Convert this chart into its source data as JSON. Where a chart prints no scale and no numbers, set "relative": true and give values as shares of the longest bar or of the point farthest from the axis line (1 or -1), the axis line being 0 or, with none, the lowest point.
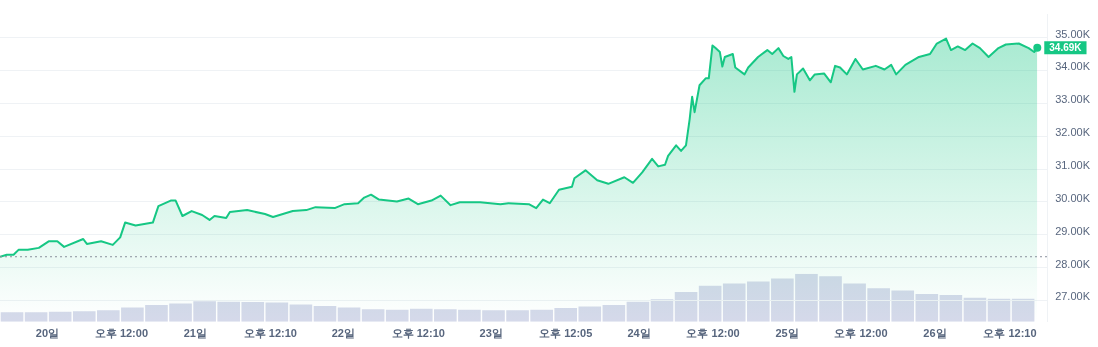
{
  "chart_data": [
    {
      "type": "area",
      "xlim": [
        "--10-19T16:18",
        "--10-26T18:12"
      ],
      "xticks": [
        {
          "value": "--10-20",
          "label": "20일"
        },
        {
          "value": "--10-20T12:00",
          "label": "오후 12:00"
        },
        {
          "value": "--10-21",
          "label": "21일"
        },
        {
          "value": "--10-21T12:10",
          "label": "오후 12:10"
        },
        {
          "value": "--10-22",
          "label": "22일"
        },
        {
          "value": "--10-22T12:10",
          "label": "오후 12:10"
        },
        {
          "value": "--10-23",
          "label": "23일"
        },
        {
          "value": "--10-23T12:05",
          "label": "오후 12:05"
        },
        {
          "value": "--10-24",
          "label": "24일"
        },
        {
          "value": "--10-24T12:00",
          "label": "오후 12:00"
        },
        {
          "value": "--10-25",
          "label": "25일"
        },
        {
          "value": "--10-25T12:00",
          "label": "오후 12:00"
        },
        {
          "value": "--10-26",
          "label": "26일"
        },
        {
          "value": "--10-26T12:10",
          "label": "오후 12:10"
        }
      ],
      "ylim": [
        26.35,
        35.7
      ],
      "yticks": [
        {
          "value": 27,
          "label": "27.00K"
        },
        {
          "value": 28,
          "label": "28.00K"
        },
        {
          "value": 29,
          "label": "29.00K"
        },
        {
          "value": 30,
          "label": "30.00K"
        },
        {
          "value": 31,
          "label": "31.00K"
        },
        {
          "value": 32,
          "label": "32.00K"
        },
        {
          "value": 33,
          "label": "33.00K"
        },
        {
          "value": 34,
          "label": "34.00K"
        },
        {
          "value": 35,
          "label": "35.00K"
        }
      ],
      "grid": "y",
      "series": [
        {
          "color": "#16c784",
          "x": [
            "--10-19T16:18",
            "--10-19T17:24",
            "--10-19T18:30",
            "--10-19T19:18",
            "--10-19T20:48",
            "--10-19T22:36",
            "--10-20T00:12",
            "--10-20T01:36",
            "--10-20T02:42",
            "--10-20T05:48",
            "--10-20T06:24",
            "--10-20T08:42",
            "--10-20T10:36",
            "--10-20T11:48",
            "--10-20T12:36",
            "--10-20T14:18",
            "--10-20T17:06",
            "--10-20T18:00",
            "--10-20T20:00",
            "--10-20T20:48",
            "--10-20T21:54",
            "--10-20T23:24",
            "--10-21T01:06",
            "--10-21T02:18",
            "--10-21T03:06",
            "--10-21T05:00",
            "--10-21T05:36",
            "--10-21T08:24",
            "--10-21T11:18",
            "--10-21T12:36",
            "--10-21T15:48",
            "--10-21T18:00",
            "--10-21T19:30",
            "--10-21T22:36",
            "--10-22T00:12",
            "--10-22T02:24",
            "--10-22T03:24",
            "--10-22T04:30",
            "--10-22T05:48",
            "--10-22T08:42",
            "--10-22T10:36",
            "--10-22T12:06",
            "--10-22T14:18",
            "--10-22T15:48",
            "--10-22T17:24",
            "--10-22T18:54",
            "--10-22T22:12",
            "--10-23T01:30",
            "--10-23T02:48",
            "--10-23T06:06",
            "--10-23T07:18",
            "--10-23T08:24",
            "--10-23T09:30",
            "--10-23T11:00",
            "--10-23T13:06",
            "--10-23T13:30",
            "--10-23T15:18",
            "--10-23T17:12",
            "--10-23T19:00",
            "--10-23T21:36",
            "--10-23T23:00",
            "--10-24T00:30",
            "--10-24T02:06",
            "--10-24T03:06",
            "--10-24T04:12",
            "--10-24T04:42",
            "--10-24T06:00",
            "--10-24T06:48",
            "--10-24T07:36",
            "--10-24T08:12",
            "--10-24T08:36",
            "--10-24T09:00",
            "--10-24T09:48",
            "--10-24T10:48",
            "--10-24T11:18",
            "--10-24T11:54",
            "--10-24T12:24",
            "--10-24T13:06",
            "--10-24T13:30",
            "--10-24T13:54",
            "--10-24T15:12",
            "--10-24T15:36",
            "--10-24T17:06",
            "--10-24T17:42",
            "--10-24T19:18",
            "--10-24T20:48",
            "--10-24T21:36",
            "--10-24T22:36",
            "--10-24T23:24",
            "--10-25T00:12",
            "--10-25T00:42",
            "--10-25T01:12",
            "--10-25T01:36",
            "--10-25T02:36",
            "--10-25T03:42",
            "--10-25T04:30",
            "--10-25T06:00",
            "--10-25T07:06",
            "--10-25T07:48",
            "--10-25T08:36",
            "--10-25T09:42",
            "--10-25T11:06",
            "--10-25T12:18",
            "--10-25T14:24",
            "--10-25T15:48",
            "--10-25T16:54",
            "--10-25T17:42",
            "--10-25T19:12",
            "--10-25T21:24",
            "--10-25T23:12",
            "--10-26T00:18",
            "--10-26T01:48",
            "--10-26T02:36",
            "--10-26T03:42",
            "--10-26T04:54",
            "--10-26T06:06",
            "--10-26T07:18",
            "--10-26T08:42",
            "--10-26T10:18",
            "--10-26T11:30",
            "--10-26T13:36",
            "--10-26T15:12",
            "--10-26T16:06",
            "--10-26T16:36"
          ],
          "values": [
            28.33,
            28.39,
            28.39,
            28.54,
            28.54,
            28.6,
            28.8,
            28.8,
            28.63,
            28.87,
            28.72,
            28.8,
            28.69,
            28.92,
            29.37,
            29.28,
            29.37,
            29.87,
            30.04,
            30.04,
            29.57,
            29.72,
            29.6,
            29.45,
            29.57,
            29.51,
            29.69,
            29.75,
            29.63,
            29.54,
            29.72,
            29.75,
            29.84,
            29.81,
            29.93,
            29.96,
            30.13,
            30.22,
            30.07,
            30.01,
            30.1,
            29.93,
            30.04,
            30.19,
            29.9,
            29.99,
            29.99,
            29.93,
            29.96,
            29.93,
            29.81,
            30.07,
            29.96,
            30.37,
            30.46,
            30.72,
            30.96,
            30.66,
            30.55,
            30.75,
            30.58,
            30.9,
            31.31,
            31.08,
            31.13,
            31.4,
            31.72,
            31.55,
            31.72,
            32.52,
            33.2,
            32.73,
            33.55,
            33.76,
            33.76,
            34.76,
            34.68,
            34.56,
            34.12,
            34.41,
            34.5,
            34.09,
            33.88,
            34.09,
            34.41,
            34.62,
            34.5,
            34.68,
            34.44,
            34.35,
            34.41,
            33.35,
            33.88,
            34.06,
            33.7,
            33.88,
            33.91,
            33.64,
            34.14,
            34.09,
            33.88,
            34.35,
            34.03,
            34.14,
            34.03,
            34.17,
            33.88,
            34.17,
            34.41,
            34.5,
            34.82,
            34.97,
            34.62,
            34.73,
            34.62,
            34.82,
            34.68,
            34.41,
            34.68,
            34.79,
            34.82,
            34.68,
            34.56,
            34.69
          ]
        }
      ],
      "ref_lines": [
        {
          "axis": "y",
          "value": 28.33,
          "color": "#8a8f9c",
          "line_style": "dotted"
        }
      ],
      "annotations": [
        {
          "text": "34.69K",
          "x": "--10-26T16:36",
          "y": 34.69
        }
      ]
    },
    {
      "type": "bar",
      "relative": true,
      "tick_labels": false,
      "color": "#d5d9ea",
      "categories": [
        null,
        null,
        null,
        null,
        null,
        null,
        null,
        null,
        null,
        null,
        null,
        null,
        null,
        null,
        null,
        null,
        null,
        null,
        null,
        null,
        null,
        null,
        null,
        null,
        null,
        null,
        null,
        null,
        null,
        null,
        null,
        null,
        null,
        null,
        null,
        null,
        null,
        null,
        null,
        null,
        null,
        null,
        null
      ],
      "values": [
        0.2,
        0.2,
        0.21,
        0.22,
        0.24,
        0.3,
        0.35,
        0.38,
        0.43,
        0.42,
        0.41,
        0.4,
        0.36,
        0.33,
        0.3,
        0.26,
        0.25,
        0.27,
        0.26,
        0.25,
        0.24,
        0.24,
        0.25,
        0.29,
        0.32,
        0.35,
        0.42,
        0.47,
        0.62,
        0.75,
        0.8,
        0.84,
        0.9,
        1,
        0.95,
        0.8,
        0.7,
        0.65,
        0.58,
        0.56,
        0.5,
        0.48,
        0.48
      ]
    }
  ]
}
